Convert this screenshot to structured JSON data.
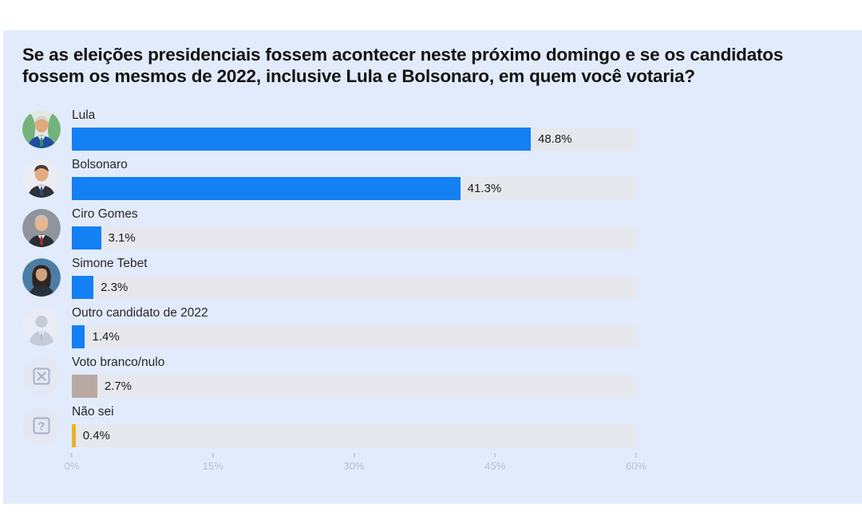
{
  "page": {
    "background": "#ffffff",
    "panel_background": "#e2ebfb"
  },
  "chart_data": {
    "type": "bar",
    "orientation": "horizontal",
    "title": "Se as eleições presidenciais fossem acontecer neste próximo domingo e se os candidatos fossem os mesmos de 2022, inclusive Lula e Bolsonaro, em quem você votaria?",
    "categories": [
      "Lula",
      "Bolsonaro",
      "Ciro Gomes",
      "Simone Tebet",
      "Outro candidato de 2022",
      "Voto branco/nulo",
      "Não sei"
    ],
    "values": [
      48.8,
      41.3,
      3.1,
      2.3,
      1.4,
      2.7,
      0.4
    ],
    "value_labels": [
      "48.8%",
      "41.3%",
      "3.1%",
      "2.3%",
      "1.4%",
      "2.7%",
      "0.4%"
    ],
    "bar_colors": [
      "#1380f3",
      "#1380f3",
      "#1380f3",
      "#1380f3",
      "#1380f3",
      "#b8a9a3",
      "#e9b32a"
    ],
    "avatars": [
      "lula-avatar",
      "bolsonaro-avatar",
      "ciro-gomes-avatar",
      "simone-tebet-avatar",
      "person-icon",
      "x-box-icon",
      "question-box-icon"
    ],
    "track_color": "#e6e8ed",
    "xlabel": "",
    "ylabel": "",
    "xlim": [
      0,
      60
    ],
    "x_tick_values": [
      0,
      15,
      30,
      45,
      60
    ],
    "x_tick_labels": [
      "0%",
      "15%",
      "30%",
      "45%",
      "60%"
    ],
    "grid": false,
    "legend": false
  }
}
